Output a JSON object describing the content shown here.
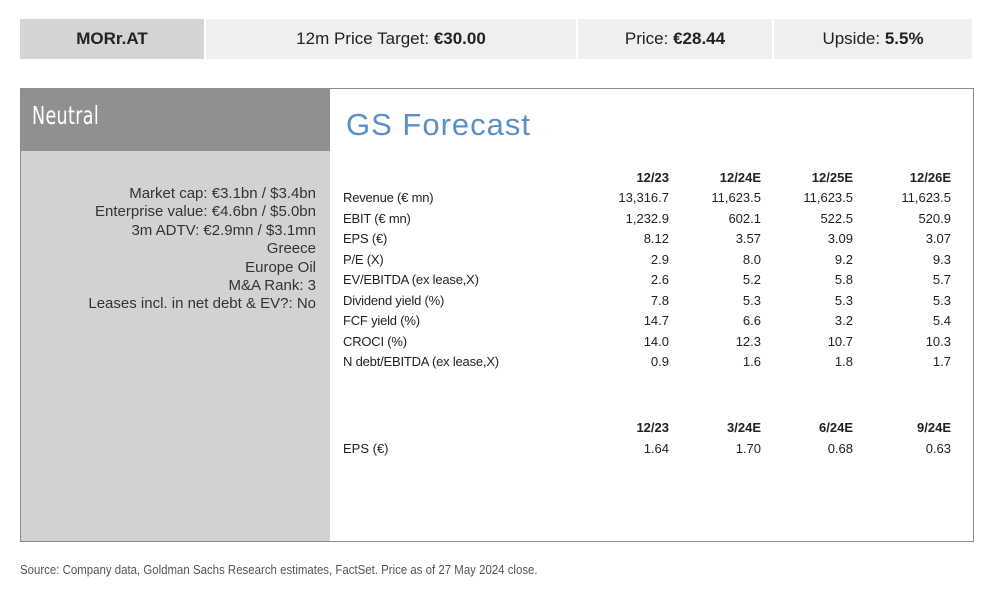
{
  "header": {
    "ticker": "MORr.AT",
    "target_label": "12m Price Target: ",
    "target_value": "€30.00",
    "price_label": "Price: ",
    "price_value": "€28.44",
    "upside_label": "Upside: ",
    "upside_value": "5.5%"
  },
  "left_panel": {
    "rating": "Neutral",
    "metrics": [
      "Market cap: €3.1bn / $3.4bn",
      "Enterprise value: €4.6bn / $5.0bn",
      "3m ADTV: €2.9mn / $3.1mn",
      "Greece",
      "Europe Oil",
      "M&A Rank: 3",
      "Leases incl. in net debt & EV?: No"
    ]
  },
  "forecast": {
    "title": "GS Forecast",
    "annual_headers": [
      "12/23",
      "12/24E",
      "12/25E",
      "12/26E"
    ],
    "rows": [
      {
        "label": "Revenue (€ mn)",
        "values": [
          "13,316.7",
          "11,623.5",
          "11,623.5",
          "11,623.5"
        ]
      },
      {
        "label": "EBIT (€ mn)",
        "values": [
          "1,232.9",
          "602.1",
          "522.5",
          "520.9"
        ]
      },
      {
        "label": "EPS (€)",
        "values": [
          "8.12",
          "3.57",
          "3.09",
          "3.07"
        ]
      },
      {
        "label": "P/E (X)",
        "values": [
          "2.9",
          "8.0",
          "9.2",
          "9.3"
        ]
      },
      {
        "label": "EV/EBITDA (ex lease,X)",
        "values": [
          "2.6",
          "5.2",
          "5.8",
          "5.7"
        ]
      },
      {
        "label": "Dividend yield (%)",
        "values": [
          "7.8",
          "5.3",
          "5.3",
          "5.3"
        ]
      },
      {
        "label": "FCF yield (%)",
        "values": [
          "14.7",
          "6.6",
          "3.2",
          "5.4"
        ]
      },
      {
        "label": "CROCI (%)",
        "values": [
          "14.0",
          "12.3",
          "10.7",
          "10.3"
        ]
      },
      {
        "label": "N debt/EBITDA (ex lease,X)",
        "values": [
          "0.9",
          "1.6",
          "1.8",
          "1.7"
        ]
      }
    ],
    "quarterly_headers": [
      "12/23",
      "3/24E",
      "6/24E",
      "9/24E"
    ],
    "quarterly_rows": [
      {
        "label": "EPS (€)",
        "values": [
          "1.64",
          "1.70",
          "0.68",
          "0.63"
        ]
      }
    ]
  },
  "footer": {
    "source": "Source: Company data, Goldman Sachs Research estimates, FactSet. Price as of 27 May 2024 close."
  }
}
